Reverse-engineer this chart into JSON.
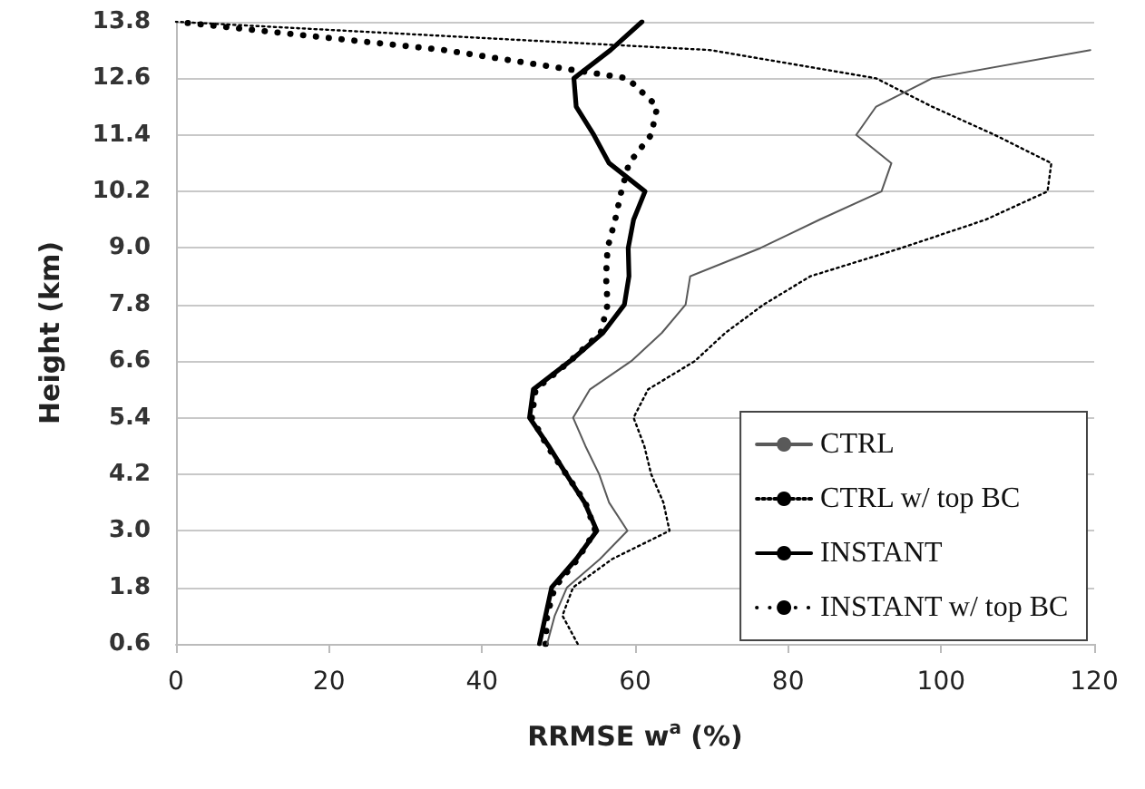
{
  "chart_data": {
    "type": "line",
    "xlabel": "RRMSE w$^{a}$ (%)",
    "ylabel": "Height (km)",
    "xlim": [
      0,
      120
    ],
    "xticks": [
      0,
      20,
      40,
      60,
      80,
      100,
      120
    ],
    "ylim": [
      0.6,
      13.8
    ],
    "yticks": [
      0.6,
      1.8,
      {
        "value": 3,
        "label": "3.0"
      },
      4.2,
      5.4,
      6.6,
      7.8,
      {
        "value": 9,
        "label": "9.0"
      },
      10.2,
      11.4,
      12.6,
      13.8
    ],
    "grid": "y",
    "legend": "bottom right",
    "marker": "none",
    "series": [
      {
        "name": "CTRL",
        "color": "#595959",
        "line_style": "solid",
        "x": [
          48.5,
          49.5,
          51.1,
          55.4,
          59,
          56.6,
          55.3,
          53.5,
          51.9,
          54.1,
          59.5,
          63.5,
          66.6,
          67.2,
          76.4,
          84.1,
          92.2,
          93.5,
          88.9,
          91.5,
          98.8,
          119.5
        ],
        "values": [
          0.6,
          1.2,
          1.8,
          2.4,
          3.0,
          3.6,
          4.2,
          4.8,
          5.4,
          6.0,
          6.6,
          7.2,
          7.8,
          8.4,
          9.0,
          9.6,
          10.2,
          10.8,
          11.4,
          12.0,
          12.6,
          13.2
        ]
      },
      {
        "name": "CTRL w/ top BC",
        "color": "#000000",
        "line_style": "dotted",
        "x": [
          52.5,
          50.5,
          51.9,
          57,
          64.5,
          63.7,
          62.1,
          61.2,
          59.8,
          61.7,
          67.8,
          71.8,
          76.8,
          82.9,
          94.8,
          105.8,
          113.9,
          114.4,
          107,
          98.8,
          91.5,
          69.8,
          0
        ],
        "values": [
          0.6,
          1.2,
          1.8,
          2.4,
          3.0,
          3.6,
          4.2,
          4.8,
          5.4,
          6.0,
          6.6,
          7.2,
          7.8,
          8.4,
          9.0,
          9.6,
          10.2,
          10.8,
          11.4,
          12.0,
          12.6,
          13.2,
          13.8
        ]
      },
      {
        "name": "INSTANT",
        "color": "#000000",
        "line_style": "solid",
        "x": [
          47.5,
          48.3,
          49.1,
          52.3,
          55,
          53.4,
          51,
          48.7,
          46.2,
          46.7,
          51.5,
          55.8,
          58.6,
          59.2,
          59.1,
          59.8,
          61.3,
          56.6,
          54.6,
          52.3,
          52,
          56.8,
          60.9
        ],
        "values": [
          0.6,
          1.2,
          1.8,
          2.4,
          3.0,
          3.6,
          4.2,
          4.8,
          5.4,
          6.0,
          6.6,
          7.2,
          7.8,
          8.4,
          9.0,
          9.6,
          10.2,
          10.8,
          11.4,
          12.0,
          12.6,
          13.2,
          13.8
        ]
      },
      {
        "name": "INSTANT w/ top BC",
        "color": "#000000",
        "line_style": "dotted",
        "x": [
          48.3,
          48.5,
          49.5,
          52.5,
          54.8,
          53.5,
          51,
          48.5,
          46.5,
          47,
          51.5,
          55.5,
          56.4,
          56.2,
          56.4,
          57.4,
          58.2,
          59.2,
          62.1,
          62.9,
          59,
          35,
          0
        ],
        "values": [
          0.6,
          1.2,
          1.8,
          2.4,
          3.0,
          3.6,
          4.2,
          4.8,
          5.4,
          6.0,
          6.6,
          7.2,
          7.8,
          8.4,
          9.0,
          9.6,
          10.2,
          10.8,
          11.4,
          12.0,
          12.6,
          13.2,
          13.8
        ]
      }
    ]
  }
}
